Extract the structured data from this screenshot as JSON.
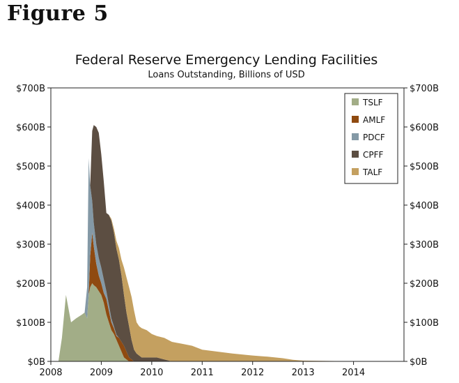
{
  "figure_label": "Figure 5",
  "chart_data": {
    "type": "area",
    "stacked": true,
    "title": "Federal Reserve Emergency Lending Facilities",
    "subtitle": "Loans Outstanding, Billions of USD",
    "xlabel": "",
    "ylabel": "",
    "xlim": [
      2008.0,
      2015.0
    ],
    "ylim": [
      0,
      700
    ],
    "x_ticks": [
      2008,
      2009,
      2010,
      2011,
      2012,
      2013,
      2014
    ],
    "y_ticks": [
      0,
      100,
      200,
      300,
      400,
      500,
      600,
      700
    ],
    "y_tick_labels": [
      "$0B",
      "$100B",
      "$200B",
      "$300B",
      "$400B",
      "$500B",
      "$600B",
      "$700B"
    ],
    "legend_position": "top-right",
    "grid": false,
    "x": [
      2008.15,
      2008.22,
      2008.3,
      2008.4,
      2008.5,
      2008.62,
      2008.67,
      2008.72,
      2008.75,
      2008.78,
      2008.82,
      2008.85,
      2008.9,
      2008.95,
      2009.0,
      2009.05,
      2009.1,
      2009.15,
      2009.2,
      2009.25,
      2009.3,
      2009.35,
      2009.4,
      2009.45,
      2009.5,
      2009.55,
      2009.6,
      2009.65,
      2009.7,
      2009.75,
      2009.8,
      2009.9,
      2010.0,
      2010.1,
      2010.25,
      2010.4,
      2010.6,
      2010.8,
      2011.0,
      2011.3,
      2011.6,
      2012.0,
      2012.3,
      2012.6,
      2012.8,
      2013.0,
      2013.5,
      2014.0,
      2014.5
    ],
    "series": [
      {
        "name": "TSLF",
        "color": "#a2ad87",
        "values": [
          0,
          60,
          170,
          100,
          110,
          120,
          125,
          110,
          170,
          190,
          200,
          195,
          190,
          180,
          170,
          150,
          120,
          100,
          80,
          70,
          55,
          40,
          25,
          10,
          5,
          0,
          0,
          0,
          0,
          0,
          0,
          0,
          0,
          0,
          0,
          0,
          0,
          0,
          0,
          0,
          0,
          0,
          0,
          0,
          0,
          0,
          0,
          0,
          0
        ]
      },
      {
        "name": "AMLF",
        "color": "#8f4a10",
        "values": [
          0,
          0,
          0,
          0,
          0,
          0,
          0,
          0,
          0,
          80,
          130,
          100,
          60,
          40,
          30,
          25,
          40,
          30,
          20,
          15,
          10,
          20,
          25,
          30,
          20,
          10,
          5,
          0,
          0,
          0,
          0,
          0,
          0,
          0,
          0,
          0,
          0,
          0,
          0,
          0,
          0,
          0,
          0,
          0,
          0,
          0,
          0,
          0,
          0
        ]
      },
      {
        "name": "PDCF",
        "color": "#8499a6",
        "values": [
          0,
          0,
          0,
          0,
          0,
          0,
          0,
          80,
          350,
          180,
          80,
          60,
          50,
          45,
          40,
          35,
          20,
          15,
          10,
          5,
          3,
          0,
          0,
          0,
          0,
          0,
          0,
          0,
          0,
          0,
          0,
          0,
          0,
          0,
          0,
          0,
          0,
          0,
          0,
          0,
          0,
          0,
          0,
          0,
          0,
          0,
          0,
          0,
          0
        ]
      },
      {
        "name": "CPFF",
        "color": "#5c4e42",
        "values": [
          0,
          0,
          0,
          0,
          0,
          0,
          0,
          0,
          0,
          0,
          180,
          250,
          300,
          320,
          290,
          250,
          200,
          230,
          250,
          240,
          220,
          200,
          170,
          130,
          100,
          80,
          50,
          30,
          20,
          15,
          10,
          10,
          10,
          10,
          5,
          0,
          0,
          0,
          0,
          0,
          0,
          0,
          0,
          0,
          0,
          0,
          0,
          0,
          0
        ]
      },
      {
        "name": "TALF",
        "color": "#c4a060",
        "values": [
          0,
          0,
          0,
          0,
          0,
          0,
          0,
          0,
          0,
          0,
          0,
          0,
          0,
          0,
          0,
          0,
          0,
          0,
          5,
          10,
          20,
          30,
          40,
          70,
          90,
          100,
          110,
          100,
          80,
          75,
          75,
          70,
          60,
          55,
          55,
          50,
          45,
          40,
          30,
          25,
          20,
          15,
          12,
          8,
          4,
          2,
          1,
          0.5,
          0
        ]
      }
    ]
  }
}
